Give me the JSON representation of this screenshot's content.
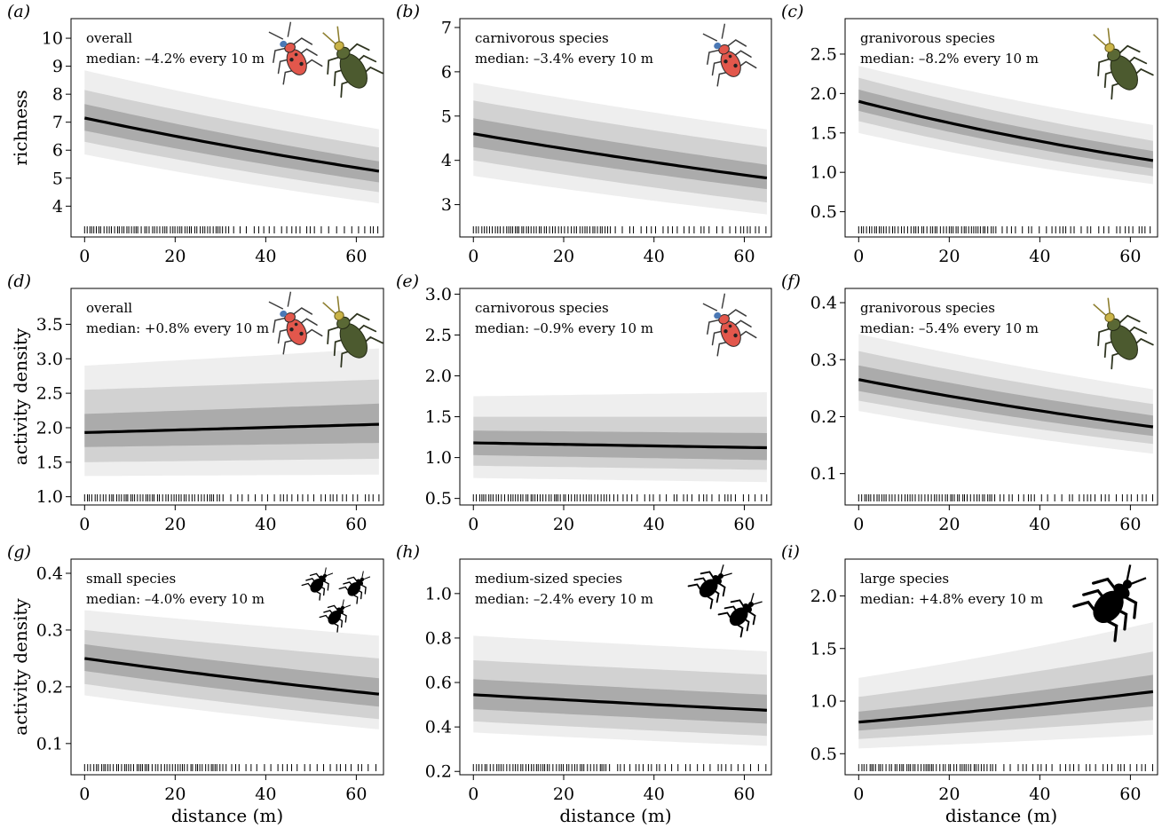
{
  "figure": {
    "xlabel": "distance (m)",
    "row_ylabels": [
      "richness",
      "activity density",
      "activity density"
    ]
  },
  "chart_data": [
    {
      "type": "line",
      "panel": "(a)",
      "group": "overall",
      "median_text": "median: –4.2% every 10 m",
      "ylabel": "richness",
      "xlabel": "",
      "icon": "beetle-pair-icon",
      "x": [
        0,
        65
      ],
      "xlim": [
        -3,
        66
      ],
      "xticks": [
        0,
        20,
        40,
        60
      ],
      "ylim": [
        2.9,
        10.7
      ],
      "yticks": [
        4,
        5,
        6,
        7,
        8,
        9,
        10
      ],
      "ytick_labels": [
        "4",
        "5",
        "6",
        "7",
        "8",
        "9",
        "10"
      ],
      "median": [
        7.15,
        5.25
      ],
      "bands": [
        {
          "level": "outer",
          "lower": [
            5.85,
            4.1
          ],
          "upper": [
            8.85,
            6.75
          ]
        },
        {
          "level": "middle",
          "lower": [
            6.3,
            4.5
          ],
          "upper": [
            8.15,
            6.1
          ]
        },
        {
          "level": "inner",
          "lower": [
            6.7,
            4.85
          ],
          "upper": [
            7.65,
            5.6
          ]
        }
      ],
      "grid": false,
      "legend": "none"
    },
    {
      "type": "line",
      "panel": "(b)",
      "group": "carnivorous species",
      "median_text": "median: –3.4% every 10 m",
      "ylabel": "",
      "xlabel": "",
      "icon": "red-beetle-icon",
      "x": [
        0,
        65
      ],
      "xlim": [
        -3,
        66
      ],
      "xticks": [
        0,
        20,
        40,
        60
      ],
      "ylim": [
        2.27,
        7.2
      ],
      "yticks": [
        3,
        4,
        5,
        6,
        7
      ],
      "ytick_labels": [
        "3",
        "4",
        "5",
        "6",
        "7"
      ],
      "median": [
        4.6,
        3.6
      ],
      "bands": [
        {
          "level": "outer",
          "lower": [
            3.65,
            2.78
          ],
          "upper": [
            5.75,
            4.7
          ]
        },
        {
          "level": "middle",
          "lower": [
            4.0,
            3.05
          ],
          "upper": [
            5.35,
            4.3
          ]
        },
        {
          "level": "inner",
          "lower": [
            4.3,
            3.35
          ],
          "upper": [
            4.95,
            3.9
          ]
        }
      ],
      "grid": false,
      "legend": "none"
    },
    {
      "type": "line",
      "panel": "(c)",
      "group": "granivorous species",
      "median_text": "median: –8.2% every 10 m",
      "ylabel": "",
      "xlabel": "",
      "icon": "green-beetle-icon",
      "x": [
        0,
        65
      ],
      "xlim": [
        -3,
        66
      ],
      "xticks": [
        0,
        20,
        40,
        60
      ],
      "ylim": [
        0.18,
        2.95
      ],
      "yticks": [
        0.5,
        1.0,
        1.5,
        2.0,
        2.5
      ],
      "ytick_labels": [
        "0.5",
        "1.0",
        "1.5",
        "2.0",
        "2.5"
      ],
      "median": [
        1.9,
        1.15
      ],
      "bands": [
        {
          "level": "outer",
          "lower": [
            1.5,
            0.85
          ],
          "upper": [
            2.35,
            1.6
          ]
        },
        {
          "level": "middle",
          "lower": [
            1.65,
            0.95
          ],
          "upper": [
            2.2,
            1.4
          ]
        },
        {
          "level": "inner",
          "lower": [
            1.78,
            1.05
          ],
          "upper": [
            2.05,
            1.27
          ]
        }
      ],
      "grid": false,
      "legend": "none"
    },
    {
      "type": "line",
      "panel": "(d)",
      "group": "overall",
      "median_text": "median: +0.8% every 10 m",
      "ylabel": "activity density",
      "xlabel": "",
      "icon": "beetle-pair-icon",
      "x": [
        0,
        65
      ],
      "xlim": [
        -3,
        66
      ],
      "xticks": [
        0,
        20,
        40,
        60
      ],
      "ylim": [
        0.88,
        4.02
      ],
      "yticks": [
        1.0,
        1.5,
        2.0,
        2.5,
        3.0,
        3.5
      ],
      "ytick_labels": [
        "1.0",
        "1.5",
        "2.0",
        "2.5",
        "3.0",
        "3.5"
      ],
      "median": [
        1.93,
        2.05
      ],
      "bands": [
        {
          "level": "outer",
          "lower": [
            1.3,
            1.32
          ],
          "upper": [
            2.9,
            3.15
          ]
        },
        {
          "level": "middle",
          "lower": [
            1.5,
            1.55
          ],
          "upper": [
            2.55,
            2.7
          ]
        },
        {
          "level": "inner",
          "lower": [
            1.72,
            1.78
          ],
          "upper": [
            2.2,
            2.35
          ]
        }
      ],
      "grid": false,
      "legend": "none"
    },
    {
      "type": "line",
      "panel": "(e)",
      "group": "carnivorous species",
      "median_text": "median: –0.9% every 10 m",
      "ylabel": "",
      "xlabel": "",
      "icon": "red-beetle-icon",
      "x": [
        0,
        65
      ],
      "xlim": [
        -3,
        66
      ],
      "xticks": [
        0,
        20,
        40,
        60
      ],
      "ylim": [
        0.42,
        3.07
      ],
      "yticks": [
        0.5,
        1.0,
        1.5,
        2.0,
        2.5,
        3.0
      ],
      "ytick_labels": [
        "0.5",
        "1.0",
        "1.5",
        "2.0",
        "2.5",
        "3.0"
      ],
      "median": [
        1.18,
        1.12
      ],
      "bands": [
        {
          "level": "outer",
          "lower": [
            0.75,
            0.7
          ],
          "upper": [
            1.75,
            1.8
          ]
        },
        {
          "level": "middle",
          "lower": [
            0.9,
            0.85
          ],
          "upper": [
            1.5,
            1.5
          ]
        },
        {
          "level": "inner",
          "lower": [
            1.03,
            0.97
          ],
          "upper": [
            1.33,
            1.3
          ]
        }
      ],
      "grid": false,
      "legend": "none"
    },
    {
      "type": "line",
      "panel": "(f)",
      "group": "granivorous species",
      "median_text": "median: –5.4% every 10 m",
      "ylabel": "",
      "xlabel": "",
      "icon": "green-beetle-icon",
      "x": [
        0,
        65
      ],
      "xlim": [
        -3,
        66
      ],
      "xticks": [
        0,
        20,
        40,
        60
      ],
      "ylim": [
        0.045,
        0.425
      ],
      "yticks": [
        0.1,
        0.2,
        0.3,
        0.4
      ],
      "ytick_labels": [
        "0.1",
        "0.2",
        "0.3",
        "0.4"
      ],
      "median": [
        0.265,
        0.182
      ],
      "bands": [
        {
          "level": "outer",
          "lower": [
            0.21,
            0.135
          ],
          "upper": [
            0.345,
            0.248
          ]
        },
        {
          "level": "middle",
          "lower": [
            0.228,
            0.152
          ],
          "upper": [
            0.315,
            0.222
          ]
        },
        {
          "level": "inner",
          "lower": [
            0.245,
            0.166
          ],
          "upper": [
            0.29,
            0.202
          ]
        }
      ],
      "grid": false,
      "legend": "none"
    },
    {
      "type": "line",
      "panel": "(g)",
      "group": "small species",
      "median_text": "median: –4.0% every 10 m",
      "ylabel": "activity density",
      "xlabel": "distance (m)",
      "icon": "small-beetles-icon",
      "x": [
        0,
        65
      ],
      "xlim": [
        -3,
        66
      ],
      "xticks": [
        0,
        20,
        40,
        60
      ],
      "ylim": [
        0.045,
        0.425
      ],
      "yticks": [
        0.1,
        0.2,
        0.3,
        0.4
      ],
      "ytick_labels": [
        "0.1",
        "0.2",
        "0.3",
        "0.4"
      ],
      "median": [
        0.25,
        0.187
      ],
      "bands": [
        {
          "level": "outer",
          "lower": [
            0.185,
            0.125
          ],
          "upper": [
            0.335,
            0.29
          ]
        },
        {
          "level": "middle",
          "lower": [
            0.205,
            0.143
          ],
          "upper": [
            0.3,
            0.25
          ]
        },
        {
          "level": "inner",
          "lower": [
            0.228,
            0.165
          ],
          "upper": [
            0.275,
            0.215
          ]
        }
      ],
      "grid": false,
      "legend": "none"
    },
    {
      "type": "line",
      "panel": "(h)",
      "group": "medium-sized species",
      "median_text": "median: –2.4% every 10 m",
      "ylabel": "",
      "xlabel": "distance (m)",
      "icon": "medium-beetles-icon",
      "x": [
        0,
        65
      ],
      "xlim": [
        -3,
        66
      ],
      "xticks": [
        0,
        20,
        40,
        60
      ],
      "ylim": [
        0.185,
        1.155
      ],
      "yticks": [
        0.2,
        0.4,
        0.6,
        0.8,
        1.0
      ],
      "ytick_labels": [
        "0.2",
        "0.4",
        "0.6",
        "0.8",
        "1.0"
      ],
      "median": [
        0.545,
        0.475
      ],
      "bands": [
        {
          "level": "outer",
          "lower": [
            0.375,
            0.315
          ],
          "upper": [
            0.81,
            0.74
          ]
        },
        {
          "level": "middle",
          "lower": [
            0.425,
            0.36
          ],
          "upper": [
            0.7,
            0.635
          ]
        },
        {
          "level": "inner",
          "lower": [
            0.48,
            0.415
          ],
          "upper": [
            0.615,
            0.545
          ]
        }
      ],
      "grid": false,
      "legend": "none"
    },
    {
      "type": "line",
      "panel": "(i)",
      "group": "large species",
      "median_text": "median: +4.8% every 10 m",
      "ylabel": "",
      "xlabel": "distance (m)",
      "icon": "large-beetle-icon",
      "x": [
        0,
        65
      ],
      "xlim": [
        -3,
        66
      ],
      "xticks": [
        0,
        20,
        40,
        60
      ],
      "ylim": [
        0.3,
        2.35
      ],
      "yticks": [
        0.5,
        1.0,
        1.5,
        2.0
      ],
      "ytick_labels": [
        "0.5",
        "1.0",
        "1.5",
        "2.0"
      ],
      "median": [
        0.8,
        1.09
      ],
      "bands": [
        {
          "level": "outer",
          "lower": [
            0.55,
            0.68
          ],
          "upper": [
            1.22,
            1.75
          ]
        },
        {
          "level": "middle",
          "lower": [
            0.64,
            0.82
          ],
          "upper": [
            1.04,
            1.47
          ]
        },
        {
          "level": "inner",
          "lower": [
            0.72,
            0.95
          ],
          "upper": [
            0.9,
            1.25
          ]
        }
      ],
      "grid": false,
      "legend": "none"
    }
  ],
  "colors": {
    "band_outer": "#eeeeee",
    "band_middle": "#d2d2d2",
    "band_inner": "#ababab",
    "median_line": "#000000",
    "rug": "#000000",
    "red_beetle_body": "#e2574c",
    "red_beetle_accent": "#4a78b5",
    "green_beetle_body": "#4c5a2f",
    "green_beetle_head": "#c9b347",
    "silhouette": "#000000"
  }
}
